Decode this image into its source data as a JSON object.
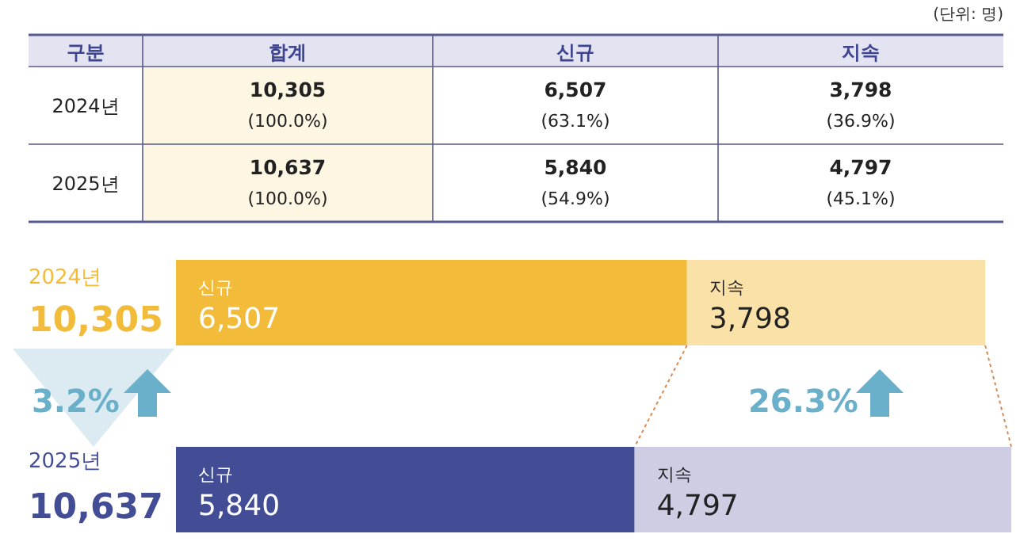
{
  "chart_data": [
    {
      "type": "other",
      "annotations": [
        "(단위: 명)"
      ],
      "categories": [
        "구분",
        "합계",
        "신규",
        "지속"
      ],
      "y_categories": [
        "2024년",
        "2025년"
      ],
      "cell_labels": [
        [
          [
            "10,305",
            "(100.0%)"
          ],
          [
            "6,507",
            "(63.1%)"
          ],
          [
            "3,798",
            "(36.9%)"
          ]
        ],
        [
          [
            "10,637",
            "(100.0%)"
          ],
          [
            "5,840",
            "(54.9%)"
          ],
          [
            "4,797",
            "(45.1%)"
          ]
        ]
      ]
    },
    {
      "type": "bar",
      "orientation": "horizontal",
      "stacked": true,
      "categories": [
        "2024년",
        "2025년"
      ],
      "totals": [
        "10,305",
        "10,637"
      ],
      "series": [
        {
          "name": "신규",
          "colors": [
            "#f3bb3a",
            "#434d96"
          ],
          "values": [
            6507,
            5840
          ],
          "value_labels": [
            "6,507",
            "5,840"
          ]
        },
        {
          "name": "지속",
          "colors": [
            "#fae1a8",
            "#cfcde4"
          ],
          "values": [
            3798,
            4797
          ],
          "value_labels": [
            "3,798",
            "4,797"
          ]
        }
      ],
      "annotations": [
        "3.2%",
        "26.3%"
      ]
    }
  ]
}
